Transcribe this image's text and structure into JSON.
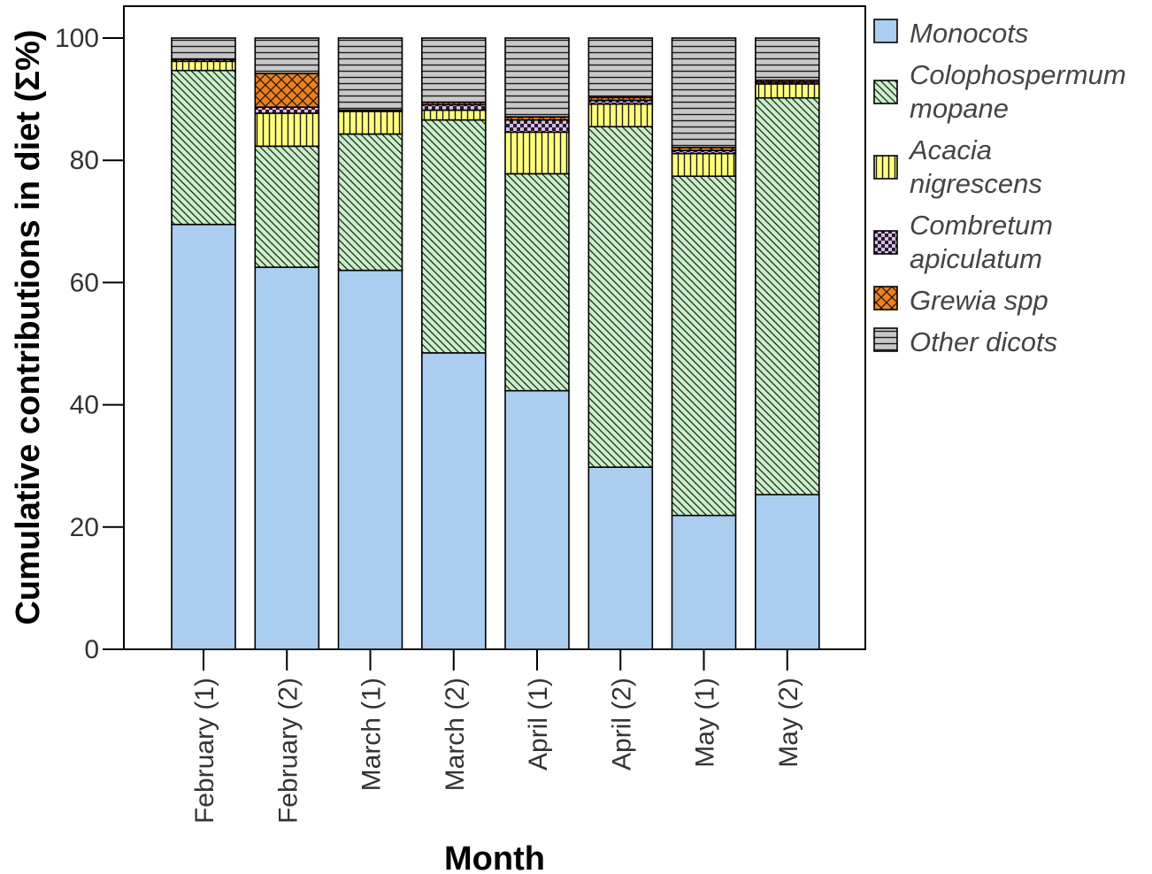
{
  "chart_data": {
    "type": "bar",
    "stacked": true,
    "xlabel": "Month",
    "ylabel": "Cumulative contributions in diet (Σ%)",
    "ylim": [
      0,
      105
    ],
    "yticks": [
      0,
      20,
      40,
      60,
      80,
      100
    ],
    "grid": false,
    "legend_position": "right",
    "categories": [
      "February (1)",
      "February (2)",
      "March (1)",
      "March (2)",
      "April (1)",
      "April (2)",
      "May (1)",
      "May (2)"
    ],
    "series": [
      {
        "name": "Monocots",
        "lines": [
          "Monocots"
        ],
        "color": "#abcdef",
        "pattern": "none",
        "values": [
          69.5,
          62.5,
          62.0,
          48.5,
          42.3,
          29.8,
          21.9,
          25.3
        ]
      },
      {
        "name": "Colophospermum mopane",
        "lines": [
          "Colophospermum",
          "mopane"
        ],
        "color": "#c8f0c8",
        "pattern": "diagonal",
        "values": [
          25.2,
          19.8,
          22.3,
          38.1,
          35.5,
          55.7,
          55.5,
          64.9
        ]
      },
      {
        "name": "Acacia nigrescens",
        "lines": [
          "Acacia",
          "nigrescens"
        ],
        "color": "#ffff80",
        "pattern": "vertical",
        "values": [
          1.5,
          5.4,
          3.7,
          1.6,
          6.8,
          3.7,
          3.7,
          2.3
        ]
      },
      {
        "name": "Combretum apiculatum",
        "lines": [
          "Combretum",
          "apiculatum"
        ],
        "color": "#ddb8f0",
        "pattern": "checker",
        "values": [
          0.3,
          1.0,
          0.2,
          0.9,
          2.0,
          0.6,
          0.5,
          0.3
        ]
      },
      {
        "name": "Grewia spp",
        "lines": [
          "Grewia spp"
        ],
        "color": "#f0801a",
        "pattern": "crosshatch",
        "values": [
          0.0,
          5.5,
          0.0,
          0.4,
          0.5,
          0.5,
          0.5,
          0.3
        ]
      },
      {
        "name": "Other dicots",
        "lines": [
          "Other dicots"
        ],
        "color": "#c8c8c8",
        "pattern": "horizontal",
        "values": [
          3.5,
          5.8,
          11.8,
          10.5,
          12.9,
          9.7,
          17.9,
          6.9
        ]
      }
    ]
  }
}
